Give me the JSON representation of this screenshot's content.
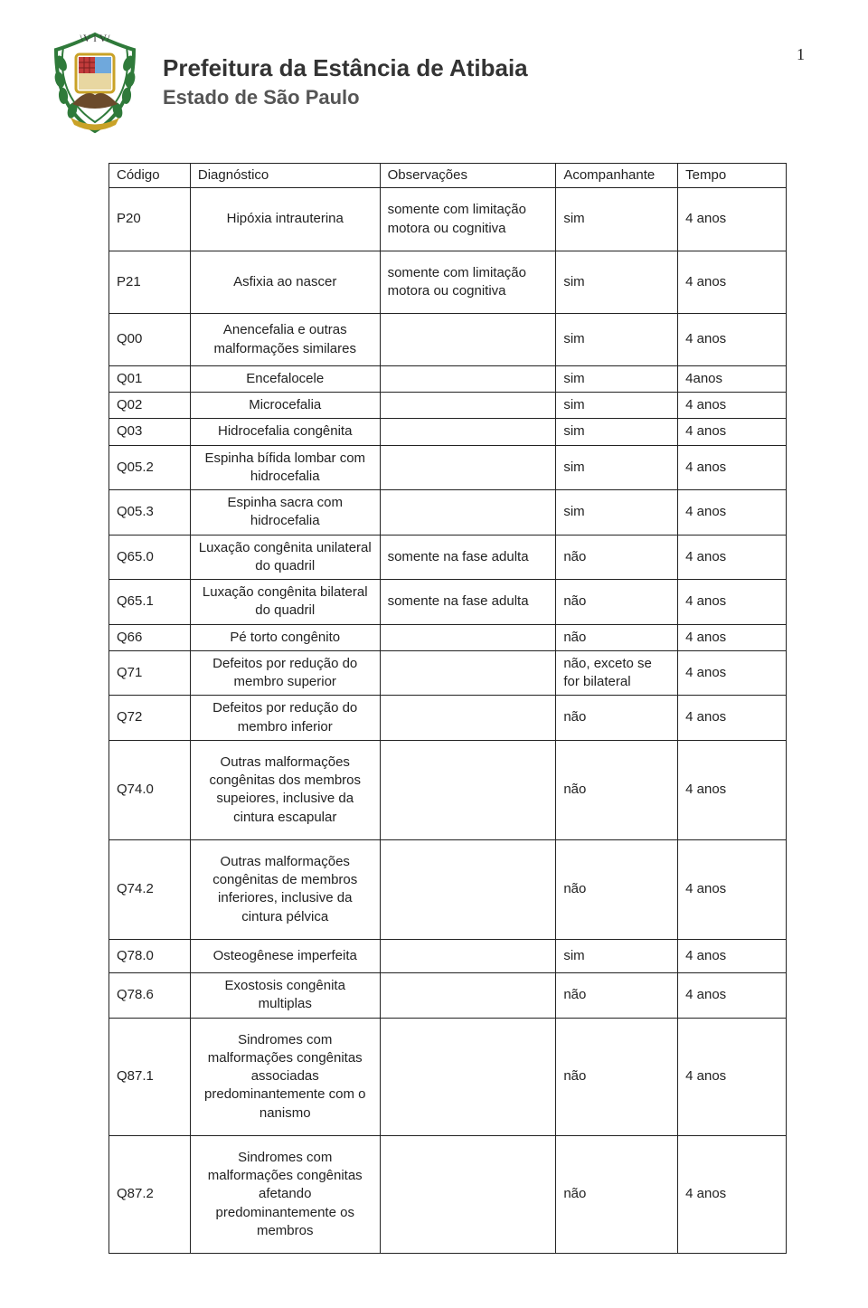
{
  "page_number": "1",
  "header": {
    "title": "Prefeitura da Estância de Atibaia",
    "subtitle": "Estado de São Paulo"
  },
  "table": {
    "columns": [
      "Código",
      "Diagnóstico",
      "Observações",
      "Acompanhante",
      "Tempo"
    ],
    "col_widths_pct": [
      12,
      28,
      26,
      18,
      16
    ],
    "border_color": "#222222",
    "font_size_pt": 11,
    "text_color": "#222222",
    "background_color": "#ffffff",
    "rows": [
      {
        "codigo": "P20",
        "diagnostico": "Hipóxia intrauterina",
        "observacoes": "somente com limitação motora ou cognitiva",
        "acompanhante": "sim",
        "tempo": "4 anos",
        "height": "tall"
      },
      {
        "codigo": "P21",
        "diagnostico": "Asfixia ao nascer",
        "observacoes": "somente com limitação motora ou cognitiva",
        "acompanhante": "sim",
        "tempo": "4 anos",
        "height": "tall"
      },
      {
        "codigo": "Q00",
        "diagnostico": "Anencefalia e outras malformações similares",
        "observacoes": "",
        "acompanhante": "sim",
        "tempo": "4 anos",
        "height": "med"
      },
      {
        "codigo": "Q01",
        "diagnostico": "Encefalocele",
        "observacoes": "",
        "acompanhante": "sim",
        "tempo": "4anos",
        "height": ""
      },
      {
        "codigo": "Q02",
        "diagnostico": "Microcefalia",
        "observacoes": "",
        "acompanhante": "sim",
        "tempo": "4 anos",
        "height": ""
      },
      {
        "codigo": "Q03",
        "diagnostico": "Hidrocefalia congênita",
        "observacoes": "",
        "acompanhante": "sim",
        "tempo": "4 anos",
        "height": ""
      },
      {
        "codigo": "Q05.2",
        "diagnostico": "Espinha bífida lombar com hidrocefalia",
        "observacoes": "",
        "acompanhante": "sim",
        "tempo": "4 anos",
        "height": ""
      },
      {
        "codigo": "Q05.3",
        "diagnostico": "Espinha sacra com hidrocefalia",
        "observacoes": "",
        "acompanhante": "sim",
        "tempo": "4 anos",
        "height": ""
      },
      {
        "codigo": "Q65.0",
        "diagnostico": "Luxação congênita unilateral do quadril",
        "observacoes": "somente na fase adulta",
        "acompanhante": "não",
        "tempo": "4 anos",
        "height": ""
      },
      {
        "codigo": "Q65.1",
        "diagnostico": "Luxação congênita bilateral do quadril",
        "observacoes": "somente na fase adulta",
        "acompanhante": "não",
        "tempo": "4 anos",
        "height": ""
      },
      {
        "codigo": "Q66",
        "diagnostico": "Pé torto congênito",
        "observacoes": "",
        "acompanhante": "não",
        "tempo": "4 anos",
        "height": ""
      },
      {
        "codigo": "Q71",
        "diagnostico": "Defeitos por redução do membro superior",
        "observacoes": "",
        "acompanhante": "não, exceto se for bilateral",
        "tempo": "4 anos",
        "height": ""
      },
      {
        "codigo": "Q72",
        "diagnostico": "Defeitos por redução do membro inferior",
        "observacoes": "",
        "acompanhante": "não",
        "tempo": "4 anos",
        "height": ""
      },
      {
        "codigo": "Q74.0",
        "diagnostico": "Outras malformações congênitas dos membros supeiores, inclusive da cintura escapular",
        "observacoes": "",
        "acompanhante": "não",
        "tempo": "4 anos",
        "height": "tall"
      },
      {
        "codigo": "Q74.2",
        "diagnostico": "Outras malformações congênitas de membros inferiores, inclusive da cintura pélvica",
        "observacoes": "",
        "acompanhante": "não",
        "tempo": "4 anos",
        "height": "tall"
      },
      {
        "codigo": "Q78.0",
        "diagnostico": "Osteogênese imperfeita",
        "observacoes": "",
        "acompanhante": "sim",
        "tempo": "4 anos",
        "height": "med"
      },
      {
        "codigo": "Q78.6",
        "diagnostico": "Exostosis congênita multiplas",
        "observacoes": "",
        "acompanhante": "não",
        "tempo": "4 anos",
        "height": ""
      },
      {
        "codigo": "Q87.1",
        "diagnostico": "Sindromes com malformações congênitas associadas predominantemente com o nanismo",
        "observacoes": "",
        "acompanhante": "não",
        "tempo": "4 anos",
        "height": "tall"
      },
      {
        "codigo": "Q87.2",
        "diagnostico": "Sindromes com malformações congênitas afetando predominantemente os membros",
        "observacoes": "",
        "acompanhante": "não",
        "tempo": "4 anos",
        "height": "tall"
      }
    ]
  },
  "crest_colors": {
    "leaf": "#2f7a3a",
    "shield_border": "#c9a227",
    "panel1": "#c23b3b",
    "panel2": "#6fa8dc",
    "panel3": "#e8d7a1",
    "mountain": "#6b4a2b",
    "ribbon": "#c9a227"
  }
}
